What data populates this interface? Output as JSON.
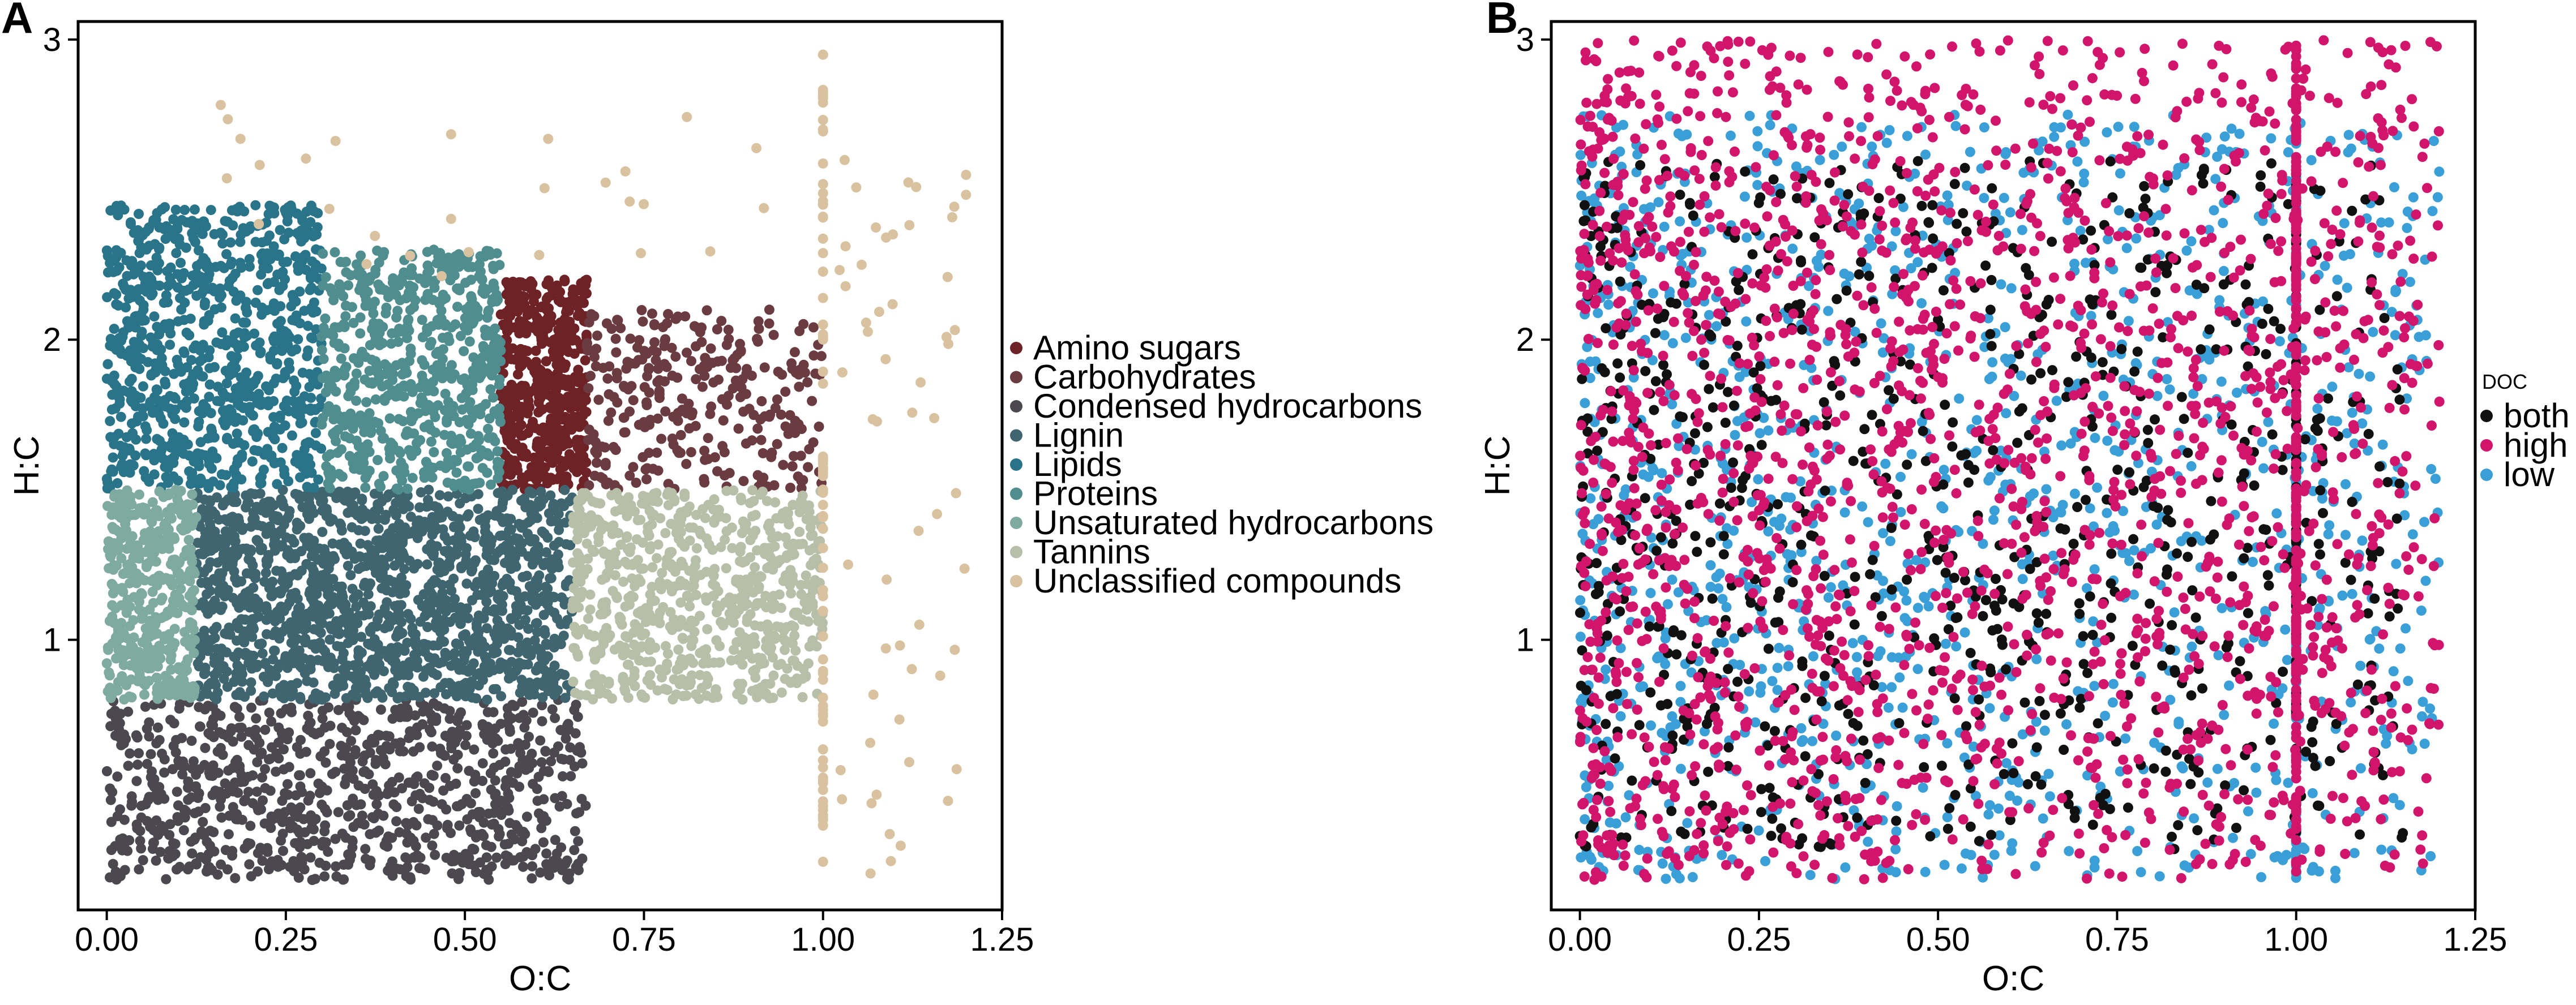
{
  "chart_data": [
    {
      "panel": "A",
      "type": "scatter",
      "title": "",
      "xlabel": "O:C",
      "ylabel": "H:C",
      "xlim": [
        -0.04,
        1.25
      ],
      "ylim": [
        0.1,
        3.06
      ],
      "xticks": [
        0.0,
        0.25,
        0.5,
        0.75,
        1.0,
        1.25
      ],
      "xtick_labels": [
        "0.00",
        "0.25",
        "0.50",
        "0.75",
        "1.00",
        "1.25"
      ],
      "yticks": [
        1,
        2,
        3
      ],
      "ytick_labels": [
        "1",
        "2",
        "3"
      ],
      "grid": false,
      "legend_position": "right",
      "legend_title": "",
      "colors": {
        "Amino sugars": "#6e2226",
        "Carbohydrates": "#6a3b41",
        "Condensed hydrocarbons": "#4b4850",
        "Lignin": "#3f6670",
        "Lipids": "#2a7489",
        "Proteins": "#4f8d8f",
        "Unsaturated hydrocarbons": "#7faa9f",
        "Tannins": "#b8bfa8",
        "Unclassified compounds": "#d9c2a0"
      },
      "series": [
        {
          "name": "Amino sugars",
          "region": {
            "x": [
              0.55,
              0.67
            ],
            "y": [
              1.5,
              2.2
            ]
          }
        },
        {
          "name": "Carbohydrates",
          "region": {
            "x": [
              0.67,
              1.0
            ],
            "y": [
              1.5,
              2.1
            ]
          }
        },
        {
          "name": "Condensed hydrocarbons",
          "region": {
            "x": [
              0.0,
              0.67
            ],
            "y": [
              0.2,
              0.8
            ]
          }
        },
        {
          "name": "Lignin",
          "region": {
            "x": [
              0.125,
              0.65
            ],
            "y": [
              0.8,
              1.5
            ]
          }
        },
        {
          "name": "Lipids",
          "region": {
            "x": [
              0.0,
              0.3
            ],
            "y": [
              1.5,
              2.45
            ]
          }
        },
        {
          "name": "Proteins",
          "region": {
            "x": [
              0.3,
              0.55
            ],
            "y": [
              1.5,
              2.3
            ]
          }
        },
        {
          "name": "Unsaturated hydrocarbons",
          "region": {
            "x": [
              0.0,
              0.125
            ],
            "y": [
              0.8,
              1.5
            ]
          }
        },
        {
          "name": "Tannins",
          "region": {
            "x": [
              0.65,
              1.0
            ],
            "y": [
              0.8,
              1.5
            ]
          }
        },
        {
          "name": "Unclassified compounds",
          "region": {
            "x": [
              0.15,
              1.2
            ],
            "y": [
              0.2,
              3.0
            ]
          }
        }
      ]
    },
    {
      "panel": "B",
      "type": "scatter",
      "title": "",
      "xlabel": "O:C",
      "ylabel": "H:C",
      "xlim": [
        -0.04,
        1.25
      ],
      "ylim": [
        0.1,
        3.06
      ],
      "xticks": [
        0.0,
        0.25,
        0.5,
        0.75,
        1.0,
        1.25
      ],
      "xtick_labels": [
        "0.00",
        "0.25",
        "0.50",
        "0.75",
        "1.00",
        "1.25"
      ],
      "yticks": [
        1,
        2,
        3
      ],
      "ytick_labels": [
        "1",
        "2",
        "3"
      ],
      "grid": false,
      "legend_position": "right",
      "legend_title": "DOC",
      "colors": {
        "both": "#111111",
        "high": "#d1146c",
        "low": "#3a9fd6"
      },
      "series": [
        {
          "name": "both",
          "region": {
            "x": [
              0.0,
              1.15
            ],
            "y": [
              0.3,
              2.6
            ]
          }
        },
        {
          "name": "high",
          "region": {
            "x": [
              0.0,
              1.2
            ],
            "y": [
              0.2,
              3.0
            ]
          }
        },
        {
          "name": "low",
          "region": {
            "x": [
              0.0,
              1.2
            ],
            "y": [
              0.2,
              2.75
            ]
          }
        }
      ]
    }
  ]
}
